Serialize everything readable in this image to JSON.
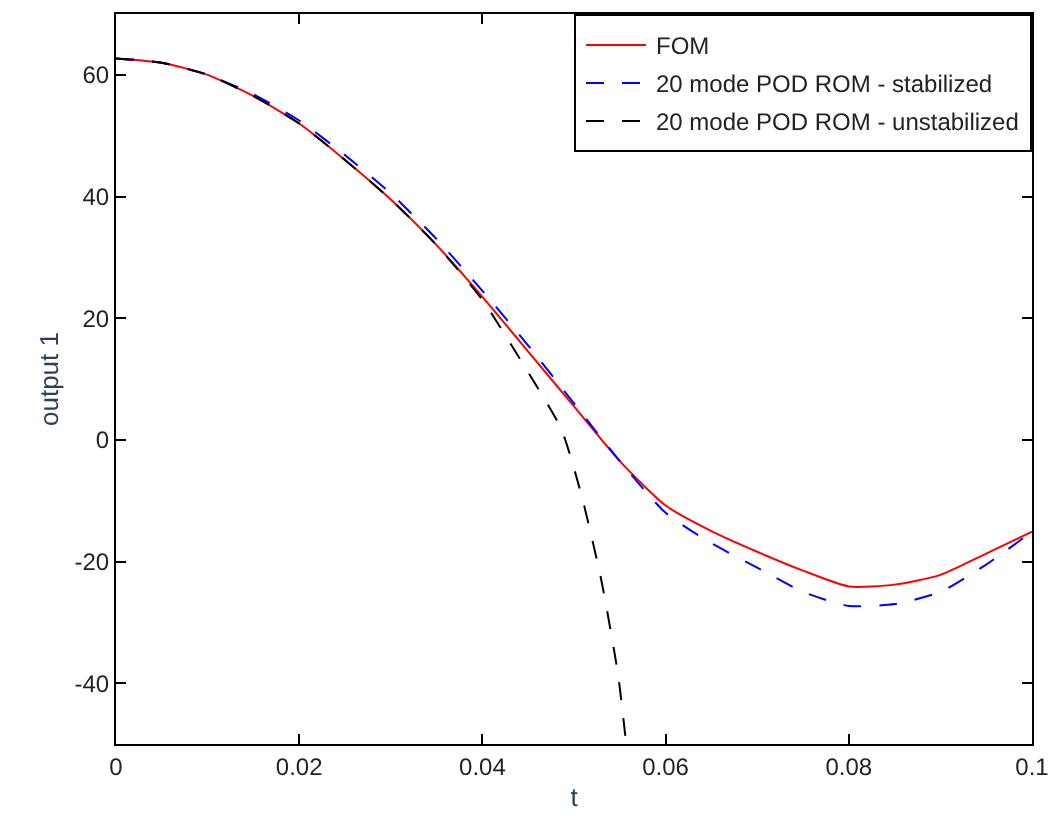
{
  "chart_data": {
    "type": "line",
    "xlabel": "t",
    "ylabel": "output 1",
    "xlim": [
      0,
      0.1
    ],
    "xticks": [
      0,
      0.02,
      0.04,
      0.06,
      0.08,
      0.1
    ],
    "ylim": [
      -50,
      70
    ],
    "yticks": [
      -40,
      -20,
      0,
      20,
      40,
      60
    ],
    "legend": "top right",
    "x": [
      0,
      0.005,
      0.01,
      0.015,
      0.02,
      0.025,
      0.03,
      0.035,
      0.04,
      0.045,
      0.05,
      0.055,
      0.06,
      0.065,
      0.07,
      0.075,
      0.08,
      0.085,
      0.09,
      0.095,
      0.1
    ],
    "series": [
      {
        "name": "FOM",
        "color": "#ff0000",
        "line_style": "solid",
        "values": [
          62.7,
          62,
          60,
          56.5,
          52,
          46,
          39.5,
          32,
          23.5,
          14.5,
          5.5,
          -3.5,
          -10.8,
          -15,
          -18.4,
          -21.5,
          -24.1,
          -23.8,
          -22.2,
          -18.7,
          -15.1
        ]
      },
      {
        "name": "20 mode POD ROM - stabilized",
        "color": "#0000ff",
        "line_style": "dashed",
        "values": [
          62.7,
          62,
          60,
          56.8,
          52.5,
          46.8,
          40.5,
          33,
          24.5,
          15.5,
          6,
          -3.5,
          -12,
          -17,
          -21,
          -25,
          -27.3,
          -27,
          -25,
          -20.5,
          -15.1
        ]
      },
      {
        "name": "20 mode POD ROM - unstabilized",
        "color": "#000000",
        "line_style": "dashed",
        "x": [
          0,
          0.005,
          0.01,
          0.015,
          0.02,
          0.025,
          0.03,
          0.035,
          0.04,
          0.0443,
          0.0486,
          0.0508,
          0.053,
          0.0548,
          0.0557
        ],
        "values": [
          62.7,
          62,
          60,
          56.5,
          52,
          46,
          39.5,
          32,
          23,
          12.8,
          1.8,
          -9,
          -23.2,
          -38.5,
          -50
        ]
      }
    ]
  }
}
